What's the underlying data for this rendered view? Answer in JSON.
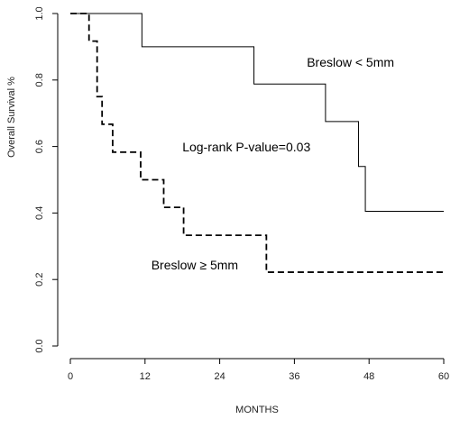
{
  "chart_data": {
    "type": "line",
    "title": "",
    "xlabel": "MONTHS",
    "ylabel": "Overall Survival %",
    "xlim": [
      0,
      60
    ],
    "ylim": [
      0,
      1
    ],
    "x_ticks": [
      0,
      12,
      24,
      36,
      48,
      60
    ],
    "y_ticks": [
      0.0,
      0.2,
      0.4,
      0.6,
      0.8,
      1.0
    ],
    "x_tick_labels": [
      "0",
      "12",
      "24",
      "36",
      "48",
      "60"
    ],
    "y_tick_labels": [
      "0.0",
      "0.2",
      "0.4",
      "0.6",
      "0.8",
      "1.0"
    ],
    "grid": false,
    "step": true,
    "series": [
      {
        "name": "Breslow < 5mm",
        "style": "solid",
        "color": "#000000",
        "points": [
          [
            0,
            1.0
          ],
          [
            11.5,
            0.9
          ],
          [
            29.5,
            0.788
          ],
          [
            41,
            0.675
          ],
          [
            46.3,
            0.54
          ],
          [
            47.4,
            0.405
          ],
          [
            60,
            0.405
          ]
        ]
      },
      {
        "name": "Breslow ≥ 5mm",
        "style": "dashed",
        "color": "#000000",
        "points": [
          [
            0,
            1.0
          ],
          [
            3.0,
            0.917
          ],
          [
            4.3,
            0.75
          ],
          [
            5.1,
            0.667
          ],
          [
            6.8,
            0.583
          ],
          [
            11.3,
            0.5
          ],
          [
            15.0,
            0.417
          ],
          [
            18.2,
            0.333
          ],
          [
            31.5,
            0.222
          ],
          [
            60,
            0.222
          ]
        ]
      }
    ],
    "annotations": [
      {
        "text": "Breslow < 5mm",
        "x": 38.0,
        "y": 0.84
      },
      {
        "text": "Log-rank P-value=0.03",
        "x": 18.0,
        "y": 0.585
      },
      {
        "text": "Breslow ≥ 5mm",
        "x": 13.0,
        "y": 0.23
      }
    ]
  }
}
